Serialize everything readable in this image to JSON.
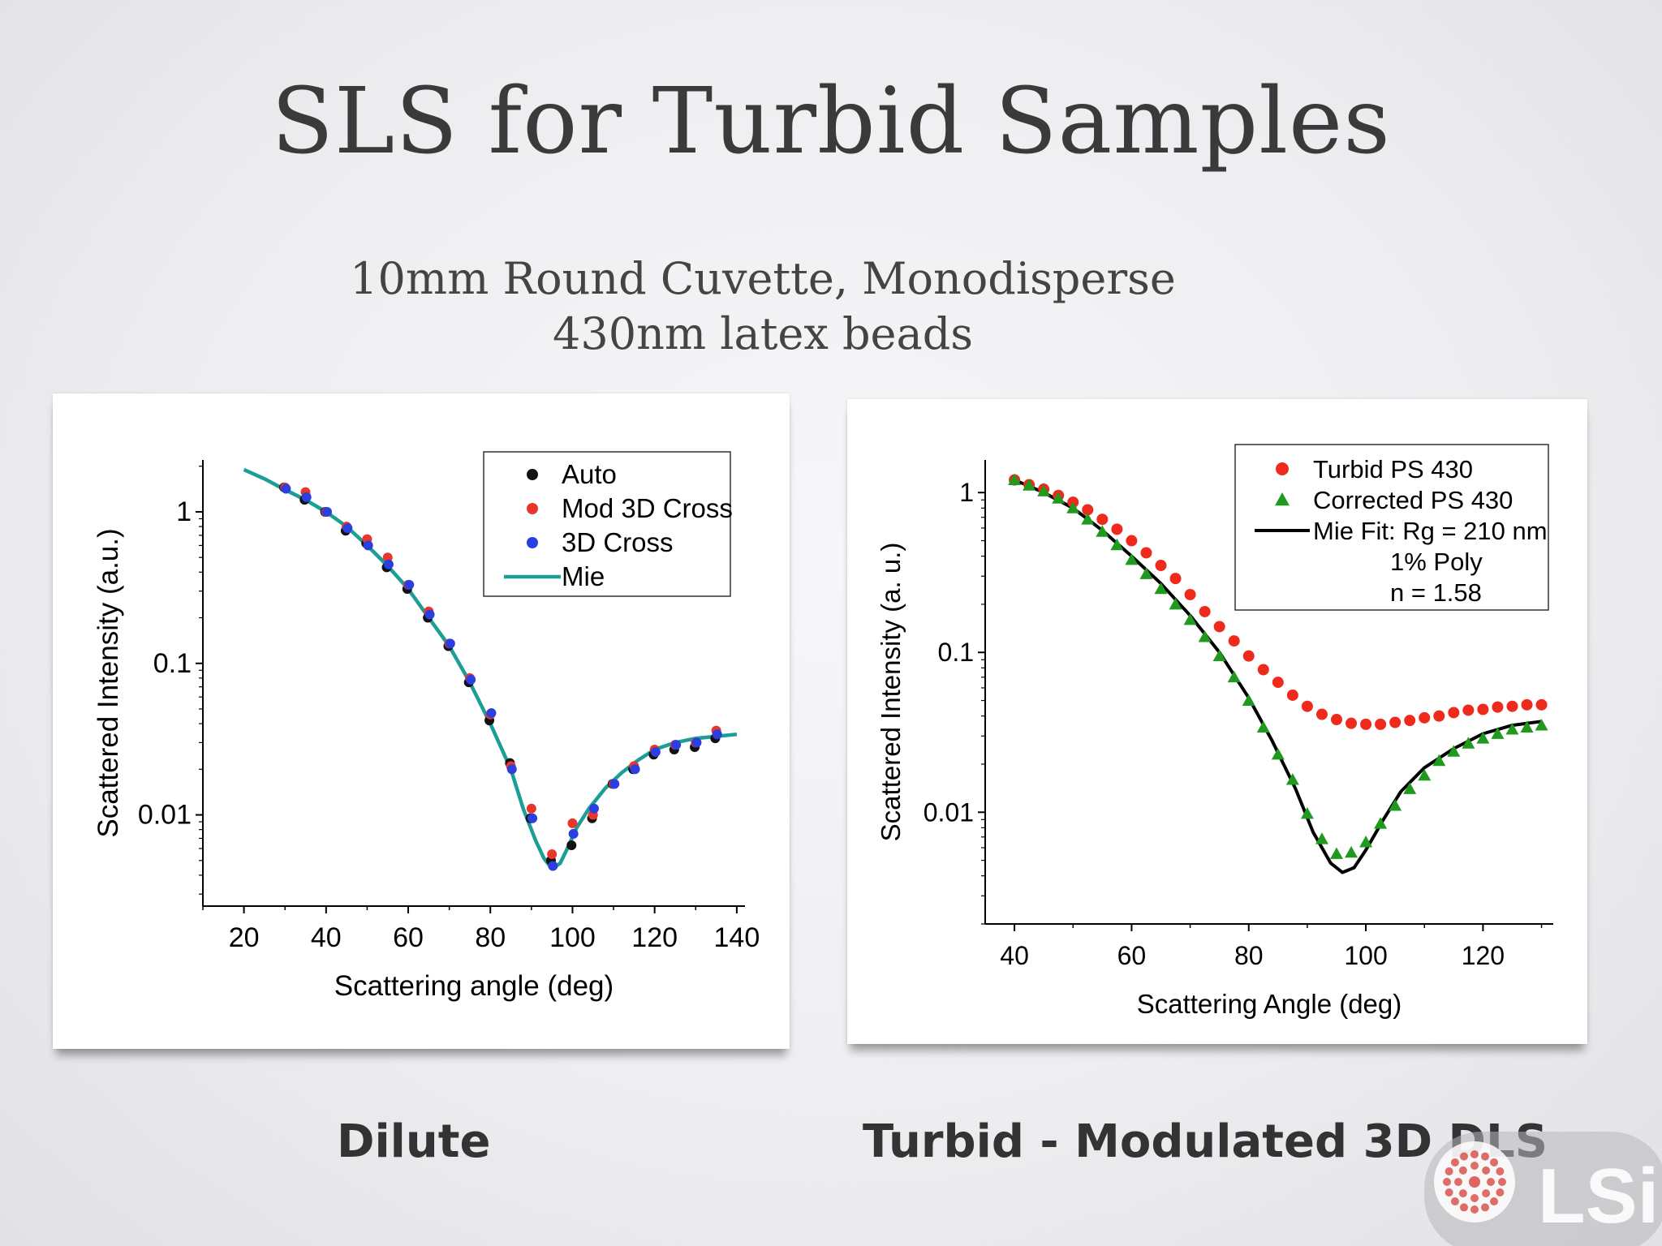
{
  "slide": {
    "title": "SLS for Turbid Samples",
    "subtitle_line1": "10mm Round Cuvette, Monodisperse",
    "subtitle_line2": "430nm latex beads",
    "caption_left": "Dilute",
    "caption_right": "Turbid - Modulated 3D DLS",
    "logo_text": "LSI",
    "logo_color": "#d9534f"
  },
  "chart_data": [
    {
      "type": "scatter",
      "xlabel": "Scattering angle (deg)",
      "ylabel": "Scattered Intensity (a.u.)",
      "xlim": [
        10,
        142
      ],
      "ylim": [
        0.0025,
        2.2
      ],
      "yscale": "log",
      "xticks": [
        20,
        40,
        60,
        80,
        100,
        120,
        140
      ],
      "yticks": [
        0.01,
        0.1,
        1
      ],
      "ytick_labels": [
        "0.01",
        "0.1",
        "1"
      ],
      "legend_position": "top-right",
      "legend": [
        {
          "label": "Auto",
          "marker": "circle",
          "color": "#111111"
        },
        {
          "label": "Mod 3D Cross",
          "marker": "circle",
          "color": "#e8372a"
        },
        {
          "label": "3D Cross",
          "marker": "circle",
          "color": "#2b3fe0"
        },
        {
          "label": "Mie",
          "marker": "line",
          "color": "#1b9e96"
        }
      ],
      "series": [
        {
          "name": "Auto",
          "color": "#111111",
          "x": [
            30,
            35,
            40,
            45,
            50,
            55,
            60,
            65,
            70,
            75,
            80,
            85,
            90,
            95,
            100,
            105,
            110,
            115,
            120,
            125,
            130,
            135
          ],
          "y": [
            1.45,
            1.2,
            1.0,
            0.75,
            0.62,
            0.43,
            0.31,
            0.2,
            0.13,
            0.075,
            0.042,
            0.022,
            0.0095,
            0.005,
            0.0063,
            0.0095,
            0.016,
            0.02,
            0.025,
            0.027,
            0.028,
            0.032
          ]
        },
        {
          "name": "Mod 3D Cross",
          "color": "#e8372a",
          "x": [
            30,
            35,
            40,
            45,
            50,
            55,
            60,
            65,
            70,
            75,
            80,
            85,
            90,
            95,
            100,
            105,
            110,
            115,
            120,
            125,
            130,
            135
          ],
          "y": [
            1.45,
            1.35,
            1.0,
            0.8,
            0.66,
            0.5,
            0.33,
            0.22,
            0.135,
            0.08,
            0.046,
            0.021,
            0.011,
            0.0055,
            0.0088,
            0.01,
            0.016,
            0.021,
            0.027,
            0.029,
            0.03,
            0.036
          ]
        },
        {
          "name": "3D Cross",
          "color": "#2b3fe0",
          "x": [
            30,
            35,
            40,
            45,
            50,
            55,
            60,
            65,
            70,
            75,
            80,
            85,
            90,
            95,
            100,
            105,
            110,
            115,
            120,
            125,
            130,
            135
          ],
          "y": [
            1.42,
            1.25,
            1.0,
            0.78,
            0.6,
            0.45,
            0.33,
            0.21,
            0.135,
            0.078,
            0.047,
            0.02,
            0.0095,
            0.0046,
            0.0075,
            0.011,
            0.016,
            0.02,
            0.026,
            0.029,
            0.03,
            0.034
          ]
        },
        {
          "name": "Mie",
          "color": "#1b9e96",
          "line": true,
          "x": [
            20,
            25,
            30,
            35,
            40,
            45,
            50,
            55,
            60,
            65,
            70,
            75,
            80,
            85,
            88,
            91,
            93,
            95,
            97,
            99,
            101,
            104,
            108,
            112,
            116,
            120,
            125,
            130,
            135,
            140
          ],
          "y": [
            1.9,
            1.65,
            1.4,
            1.2,
            1.0,
            0.8,
            0.6,
            0.44,
            0.31,
            0.2,
            0.13,
            0.075,
            0.04,
            0.02,
            0.011,
            0.0068,
            0.0052,
            0.0044,
            0.0048,
            0.0062,
            0.0082,
            0.011,
            0.015,
            0.019,
            0.023,
            0.027,
            0.03,
            0.032,
            0.033,
            0.034
          ]
        }
      ]
    },
    {
      "type": "scatter",
      "xlabel": "Scattering Angle (deg)",
      "ylabel": "Scattered Intensity (a. u.)",
      "xlim": [
        35,
        132
      ],
      "ylim": [
        0.002,
        1.6
      ],
      "yscale": "log",
      "xticks": [
        40,
        60,
        80,
        100,
        120
      ],
      "yticks": [
        0.01,
        0.1,
        1
      ],
      "ytick_labels": [
        "0.01",
        "0.1",
        "1"
      ],
      "legend_position": "top-right",
      "legend": [
        {
          "label": "Turbid PS 430",
          "marker": "circle",
          "color": "#ee2a1c"
        },
        {
          "label": "Corrected  PS 430",
          "marker": "triangle",
          "color": "#1f9a1f"
        },
        {
          "label": "Mie Fit: Rg = 210 nm",
          "marker": "line",
          "color": "#000000"
        },
        {
          "label": "1% Poly",
          "marker": "none",
          "color": "#000000"
        },
        {
          "label": "n = 1.58",
          "marker": "none",
          "color": "#000000"
        }
      ],
      "series": [
        {
          "name": "Turbid PS 430",
          "color": "#ee2a1c",
          "x": [
            40,
            42.5,
            45,
            47.5,
            50,
            52.5,
            55,
            57.5,
            60,
            62.5,
            65,
            67.5,
            70,
            72.5,
            75,
            77.5,
            80,
            82.5,
            85,
            87.5,
            90,
            92.5,
            95,
            97.5,
            100,
            102.5,
            105,
            107.5,
            110,
            112.5,
            115,
            117.5,
            120,
            122.5,
            125,
            127.5,
            130
          ],
          "y": [
            1.2,
            1.12,
            1.05,
            0.96,
            0.87,
            0.78,
            0.68,
            0.59,
            0.5,
            0.42,
            0.35,
            0.29,
            0.23,
            0.18,
            0.145,
            0.118,
            0.095,
            0.078,
            0.065,
            0.054,
            0.046,
            0.041,
            0.038,
            0.036,
            0.0355,
            0.0355,
            0.0365,
            0.0375,
            0.039,
            0.04,
            0.042,
            0.0435,
            0.044,
            0.0455,
            0.046,
            0.047,
            0.047
          ]
        },
        {
          "name": "Corrected  PS 430",
          "color": "#1f9a1f",
          "x": [
            40,
            42.5,
            45,
            47.5,
            50,
            52.5,
            55,
            57.5,
            60,
            62.5,
            65,
            67.5,
            70,
            72.5,
            75,
            77.5,
            80,
            82.5,
            85,
            87.5,
            90,
            92.5,
            95,
            97.5,
            100,
            102.5,
            105,
            107.5,
            110,
            112.5,
            115,
            117.5,
            120,
            122.5,
            125,
            127.5,
            130
          ],
          "y": [
            1.2,
            1.11,
            1.02,
            0.92,
            0.8,
            0.68,
            0.57,
            0.47,
            0.38,
            0.31,
            0.25,
            0.2,
            0.16,
            0.125,
            0.095,
            0.07,
            0.05,
            0.034,
            0.023,
            0.016,
            0.0098,
            0.0068,
            0.0055,
            0.0056,
            0.0065,
            0.0085,
            0.011,
            0.014,
            0.017,
            0.021,
            0.024,
            0.027,
            0.029,
            0.031,
            0.033,
            0.034,
            0.035
          ]
        },
        {
          "name": "Mie Fit: Rg = 210 nm",
          "color": "#000000",
          "line": true,
          "x": [
            40,
            45,
            50,
            55,
            60,
            65,
            70,
            75,
            80,
            84,
            88,
            91,
            94,
            96,
            98,
            100,
            103,
            106,
            110,
            115,
            120,
            125,
            130
          ],
          "y": [
            1.2,
            1.0,
            0.8,
            0.58,
            0.4,
            0.27,
            0.17,
            0.1,
            0.052,
            0.028,
            0.014,
            0.0075,
            0.0048,
            0.0042,
            0.0045,
            0.0058,
            0.009,
            0.0135,
            0.019,
            0.025,
            0.031,
            0.035,
            0.037
          ]
        }
      ]
    }
  ]
}
